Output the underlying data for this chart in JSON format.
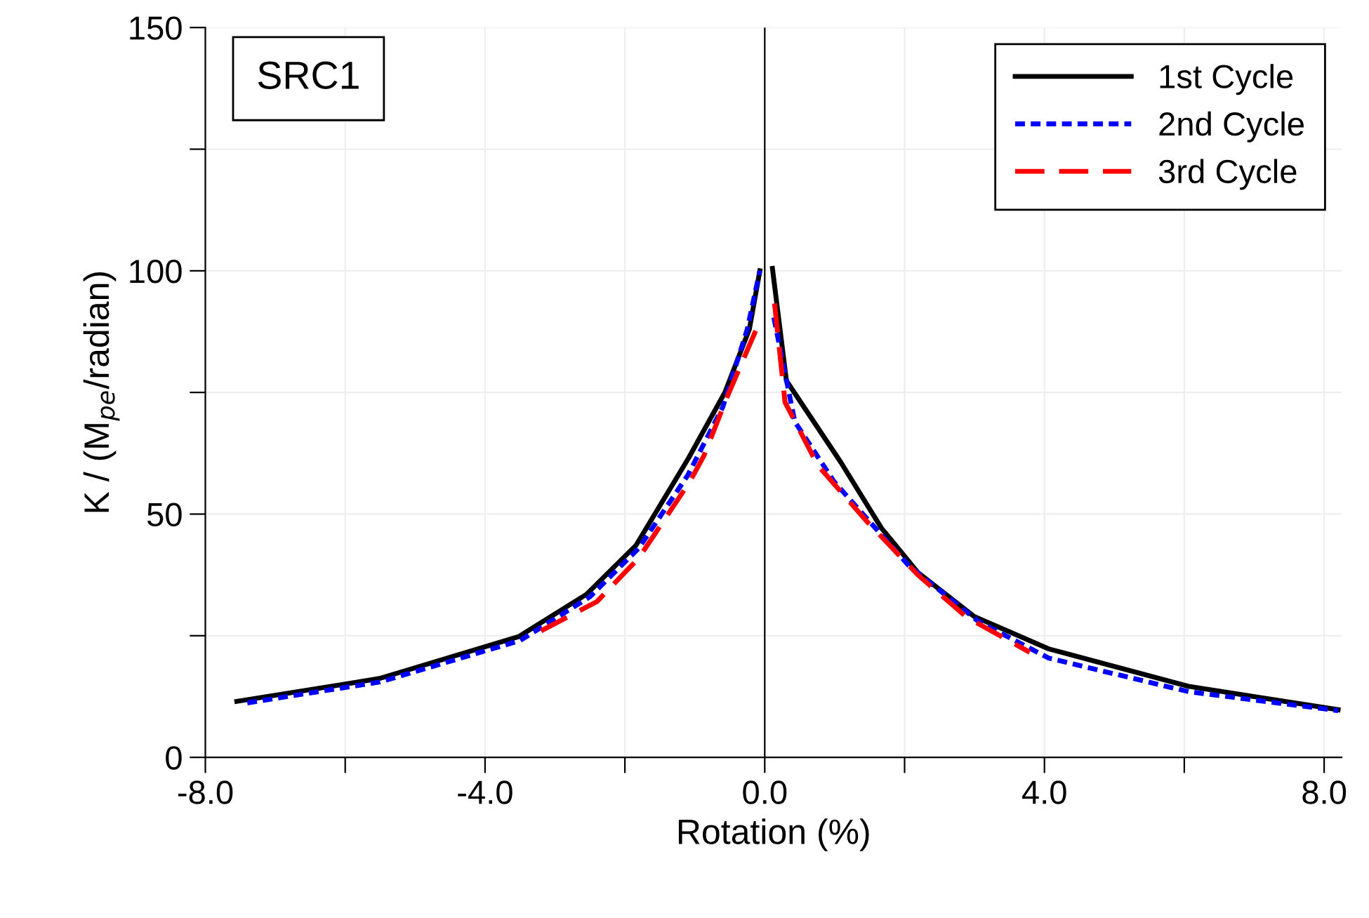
{
  "chart_data": {
    "type": "line",
    "xlabel": "Rotation (%)",
    "ylabel": "K / (M$_{pe}$/radian)",
    "annotations": [
      "SRC1"
    ],
    "xlim": [
      -8,
      8.25
    ],
    "ylim": [
      0,
      150
    ],
    "xticks": [
      {
        "value": -8,
        "label": "-8.0"
      },
      {
        "value": -6,
        "label": null
      },
      {
        "value": -4,
        "label": "-4.0"
      },
      {
        "value": -2,
        "label": null
      },
      {
        "value": 0,
        "label": "0.0"
      },
      {
        "value": 2,
        "label": null
      },
      {
        "value": 4,
        "label": "4.0"
      },
      {
        "value": 6,
        "label": null
      },
      {
        "value": 8,
        "label": "8.0"
      }
    ],
    "yticks": [
      0,
      {
        "value": 25,
        "label": null
      },
      50,
      {
        "value": 75,
        "label": null
      },
      100,
      {
        "value": 125,
        "label": null
      },
      150
    ],
    "grid": true,
    "legend": "top right",
    "marker": "none",
    "ref_lines": [
      {
        "axis": "x",
        "value": 0,
        "color": "#000000"
      }
    ],
    "series": [
      {
        "name": "1st Cycle",
        "color": "#000000",
        "line_style": "solid",
        "x": [
          -7.55,
          -5.51,
          -3.52,
          -2.55,
          -1.84,
          -1.09,
          -0.57,
          -0.22,
          -0.07,
          null,
          0.11,
          0.31,
          1.09,
          1.67,
          2.19,
          2.99,
          4.06,
          6.06,
          8.2
        ],
        "values": [
          11.5,
          16.2,
          24.8,
          33.5,
          43.6,
          61.5,
          75,
          88,
          100,
          null,
          100.5,
          77.4,
          60.6,
          47.1,
          38,
          29,
          22.3,
          14.6,
          9.8
        ]
      },
      {
        "name": "2nd Cycle",
        "color": "#0000ff",
        "line_style": "dotted",
        "x": [
          -7.4,
          -5.5,
          -3.5,
          -2.5,
          -1.8,
          -1.1,
          -0.6,
          -0.25,
          -0.07,
          null,
          0.13,
          0.43,
          0.99,
          2.06,
          3.06,
          4.06,
          6.06,
          8.2
        ],
        "values": [
          11.2,
          15.5,
          24,
          33,
          43,
          58,
          72,
          88,
          100,
          null,
          90.4,
          69,
          56.7,
          39.4,
          27.9,
          20.4,
          13.5,
          9.6
        ]
      },
      {
        "name": "3rd Cycle",
        "color": "#ff0000",
        "line_style": "dashed",
        "x": [
          -3.2,
          -2.4,
          -1.8,
          -1.07,
          -0.87,
          -0.54,
          -0.09,
          null,
          0.14,
          0.29,
          0.76,
          1.46,
          2.19,
          2.89,
          3.79
        ],
        "values": [
          26,
          32,
          41,
          56.7,
          62,
          74,
          89,
          null,
          93.3,
          73,
          60,
          48.5,
          37.5,
          28.8,
          21.6
        ]
      }
    ]
  }
}
